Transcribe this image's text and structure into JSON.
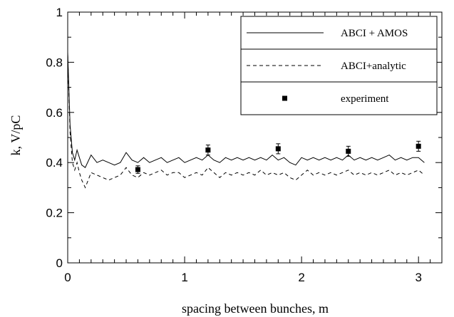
{
  "chart_data": {
    "type": "line",
    "xlabel": "spacing between bunches, m",
    "ylabel": "k, V/pC",
    "xlim": [
      0,
      3.2
    ],
    "ylim": [
      0,
      1
    ],
    "x_ticks": [
      0,
      1,
      2,
      3
    ],
    "y_ticks": [
      0,
      0.2,
      0.4,
      0.6,
      0.8,
      1
    ],
    "x_tick_labels": [
      "0",
      "1",
      "2",
      "3"
    ],
    "y_tick_labels": [
      "0",
      "0.2",
      "0.4",
      "0.6",
      "0.8",
      "1"
    ],
    "grid": false,
    "legend_position": "top-right",
    "series": [
      {
        "name": "ABCI + AMOS",
        "style": "solid",
        "x": [
          0.0,
          0.02,
          0.04,
          0.06,
          0.08,
          0.1,
          0.12,
          0.15,
          0.2,
          0.25,
          0.3,
          0.35,
          0.4,
          0.45,
          0.5,
          0.55,
          0.6,
          0.65,
          0.7,
          0.75,
          0.8,
          0.85,
          0.9,
          0.95,
          1.0,
          1.05,
          1.1,
          1.15,
          1.2,
          1.25,
          1.3,
          1.35,
          1.4,
          1.45,
          1.5,
          1.55,
          1.6,
          1.65,
          1.7,
          1.75,
          1.8,
          1.85,
          1.9,
          1.95,
          2.0,
          2.05,
          2.1,
          2.15,
          2.2,
          2.25,
          2.3,
          2.35,
          2.4,
          2.45,
          2.5,
          2.55,
          2.6,
          2.65,
          2.7,
          2.75,
          2.8,
          2.85,
          2.9,
          2.95,
          3.0,
          3.05
        ],
        "y": [
          0.84,
          0.55,
          0.44,
          0.41,
          0.45,
          0.42,
          0.39,
          0.38,
          0.43,
          0.4,
          0.41,
          0.4,
          0.39,
          0.4,
          0.44,
          0.41,
          0.4,
          0.42,
          0.4,
          0.41,
          0.42,
          0.4,
          0.41,
          0.42,
          0.4,
          0.41,
          0.42,
          0.41,
          0.43,
          0.41,
          0.4,
          0.42,
          0.41,
          0.42,
          0.41,
          0.42,
          0.41,
          0.42,
          0.41,
          0.43,
          0.41,
          0.42,
          0.4,
          0.39,
          0.42,
          0.41,
          0.42,
          0.41,
          0.42,
          0.41,
          0.42,
          0.41,
          0.43,
          0.41,
          0.42,
          0.41,
          0.42,
          0.41,
          0.42,
          0.43,
          0.41,
          0.42,
          0.41,
          0.42,
          0.42,
          0.4
        ]
      },
      {
        "name": "ABCI+analytic",
        "style": "dashed",
        "x": [
          0.0,
          0.02,
          0.04,
          0.06,
          0.08,
          0.1,
          0.12,
          0.15,
          0.2,
          0.25,
          0.3,
          0.35,
          0.4,
          0.45,
          0.5,
          0.55,
          0.6,
          0.65,
          0.7,
          0.75,
          0.8,
          0.85,
          0.9,
          0.95,
          1.0,
          1.05,
          1.1,
          1.15,
          1.2,
          1.25,
          1.3,
          1.35,
          1.4,
          1.45,
          1.5,
          1.55,
          1.6,
          1.65,
          1.7,
          1.75,
          1.8,
          1.85,
          1.9,
          1.95,
          2.0,
          2.05,
          2.1,
          2.15,
          2.2,
          2.25,
          2.3,
          2.35,
          2.4,
          2.45,
          2.5,
          2.55,
          2.6,
          2.65,
          2.7,
          2.75,
          2.8,
          2.85,
          2.9,
          2.95,
          3.0,
          3.05
        ],
        "y": [
          0.83,
          0.52,
          0.4,
          0.37,
          0.4,
          0.36,
          0.33,
          0.3,
          0.36,
          0.35,
          0.34,
          0.33,
          0.34,
          0.35,
          0.38,
          0.35,
          0.34,
          0.36,
          0.35,
          0.36,
          0.37,
          0.35,
          0.36,
          0.36,
          0.34,
          0.35,
          0.36,
          0.35,
          0.38,
          0.36,
          0.34,
          0.36,
          0.35,
          0.36,
          0.35,
          0.36,
          0.35,
          0.37,
          0.35,
          0.36,
          0.35,
          0.36,
          0.34,
          0.33,
          0.35,
          0.37,
          0.35,
          0.36,
          0.35,
          0.36,
          0.35,
          0.36,
          0.37,
          0.35,
          0.36,
          0.35,
          0.36,
          0.35,
          0.36,
          0.37,
          0.35,
          0.36,
          0.35,
          0.36,
          0.37,
          0.35
        ]
      },
      {
        "name": "experiment",
        "style": "markers",
        "x": [
          0.6,
          1.2,
          1.8,
          2.4,
          3.0
        ],
        "y": [
          0.372,
          0.45,
          0.455,
          0.445,
          0.465
        ],
        "err": [
          0.015,
          0.02,
          0.02,
          0.02,
          0.02
        ]
      }
    ]
  }
}
